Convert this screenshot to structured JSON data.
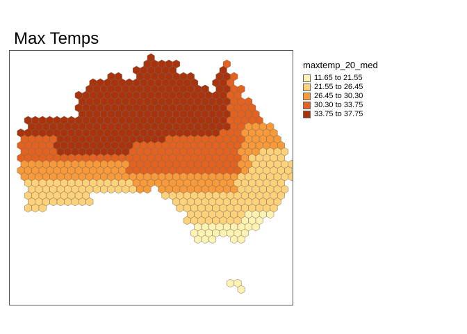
{
  "title": "Max Temps",
  "legend": {
    "title": "maxtemp_20_med",
    "classes": [
      {
        "label": "11.65 to 21.55",
        "color": "#fff3b4"
      },
      {
        "label": "21.55 to 26.45",
        "color": "#fed27b"
      },
      {
        "label": "26.45 to 30.30",
        "color": "#f89a3a"
      },
      {
        "label": "30.30 to 33.75",
        "color": "#e4621f"
      },
      {
        "label": "33.75 to 37.75",
        "color": "#a8330d"
      }
    ]
  }
}
